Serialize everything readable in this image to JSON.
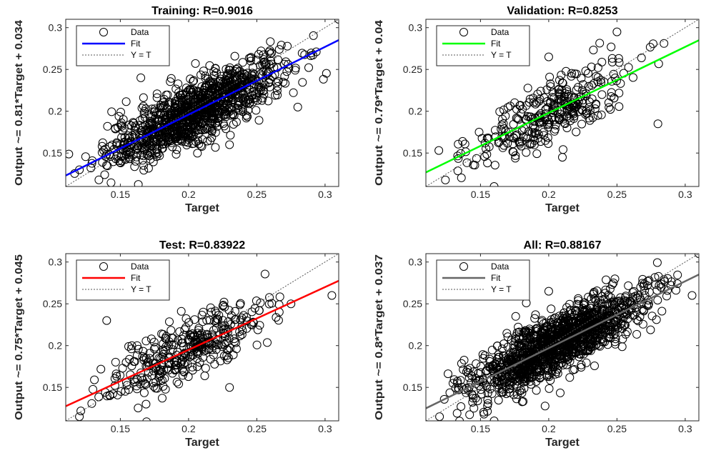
{
  "chart_data": [
    {
      "type": "scatter",
      "title": "Training: R=0.9016",
      "xlabel": "Target",
      "ylabel": "Output ~= 0.81*Target + 0.034",
      "xlim": [
        0.11,
        0.31
      ],
      "ylim": [
        0.11,
        0.31
      ],
      "xticks": [
        "0.15",
        "0.2",
        "0.25",
        "0.3"
      ],
      "yticks": [
        "0.15",
        "0.2",
        "0.25",
        "0.3"
      ],
      "grid": false,
      "legend_position": "top-left",
      "legend": [
        "Data",
        "Fit",
        "Y = T"
      ],
      "fit_color": "#0000ff",
      "fit": {
        "slope": 0.81,
        "intercept": 0.034
      },
      "r": 0.9016,
      "point_cloud": {
        "x_mean": 0.205,
        "x_sd": 0.032,
        "slope": 0.81,
        "intercept": 0.034,
        "noise_sd": 0.018,
        "n": 1100
      },
      "points": [
        [
          0.31,
          0.31
        ],
        [
          0.12,
          0.13
        ],
        [
          0.28,
          0.205
        ],
        [
          0.23,
          0.16
        ],
        [
          0.165,
          0.24
        ]
      ]
    },
    {
      "type": "scatter",
      "title": "Validation: R=0.8253",
      "xlabel": "Target",
      "ylabel": "Output ~= 0.79*Target + 0.04",
      "xlim": [
        0.11,
        0.31
      ],
      "ylim": [
        0.11,
        0.31
      ],
      "xticks": [
        "0.15",
        "0.2",
        "0.25",
        "0.3"
      ],
      "yticks": [
        "0.15",
        "0.2",
        "0.25",
        "0.3"
      ],
      "grid": false,
      "legend_position": "top-left",
      "legend": [
        "Data",
        "Fit",
        "Y = T"
      ],
      "fit_color": "#00ff00",
      "fit": {
        "slope": 0.79,
        "intercept": 0.04
      },
      "r": 0.8253,
      "point_cloud": {
        "x_mean": 0.2,
        "x_sd": 0.03,
        "slope": 0.79,
        "intercept": 0.04,
        "noise_sd": 0.02,
        "n": 330
      },
      "points": [
        [
          0.25,
          0.295
        ],
        [
          0.28,
          0.185
        ],
        [
          0.21,
          0.145
        ],
        [
          0.16,
          0.11
        ],
        [
          0.2,
          0.265
        ]
      ]
    },
    {
      "type": "scatter",
      "title": "Test: R=0.83922",
      "xlabel": "Target",
      "ylabel": "Output ~= 0.75*Target + 0.045",
      "xlim": [
        0.11,
        0.31
      ],
      "ylim": [
        0.11,
        0.31
      ],
      "xticks": [
        "0.15",
        "0.2",
        "0.25",
        "0.3"
      ],
      "yticks": [
        "0.15",
        "0.2",
        "0.25",
        "0.3"
      ],
      "grid": false,
      "legend_position": "top-left",
      "legend": [
        "Data",
        "Fit",
        "Y = T"
      ],
      "fit_color": "#ff0000",
      "fit": {
        "slope": 0.75,
        "intercept": 0.045
      },
      "r": 0.83922,
      "point_cloud": {
        "x_mean": 0.2,
        "x_sd": 0.03,
        "slope": 0.75,
        "intercept": 0.045,
        "noise_sd": 0.019,
        "n": 360
      },
      "points": [
        [
          0.305,
          0.26
        ],
        [
          0.12,
          0.115
        ],
        [
          0.23,
          0.15
        ],
        [
          0.14,
          0.23
        ],
        [
          0.275,
          0.25
        ]
      ]
    },
    {
      "type": "scatter",
      "title": "All: R=0.88167",
      "xlabel": "Target",
      "ylabel": "Output ~= 0.8*Target + 0.037",
      "xlim": [
        0.11,
        0.31
      ],
      "ylim": [
        0.11,
        0.31
      ],
      "xticks": [
        "0.15",
        "0.2",
        "0.25",
        "0.3"
      ],
      "yticks": [
        "0.15",
        "0.2",
        "0.25",
        "0.3"
      ],
      "grid": false,
      "legend_position": "top-left",
      "legend": [
        "Data",
        "Fit",
        "Y = T"
      ],
      "fit_color": "#666666",
      "fit": {
        "slope": 0.8,
        "intercept": 0.037
      },
      "r": 0.88167,
      "point_cloud": {
        "x_mean": 0.205,
        "x_sd": 0.032,
        "slope": 0.8,
        "intercept": 0.037,
        "noise_sd": 0.018,
        "n": 1350
      },
      "points": [
        [
          0.31,
          0.31
        ],
        [
          0.12,
          0.115
        ],
        [
          0.305,
          0.26
        ],
        [
          0.16,
          0.11
        ],
        [
          0.2,
          0.265
        ]
      ]
    }
  ]
}
